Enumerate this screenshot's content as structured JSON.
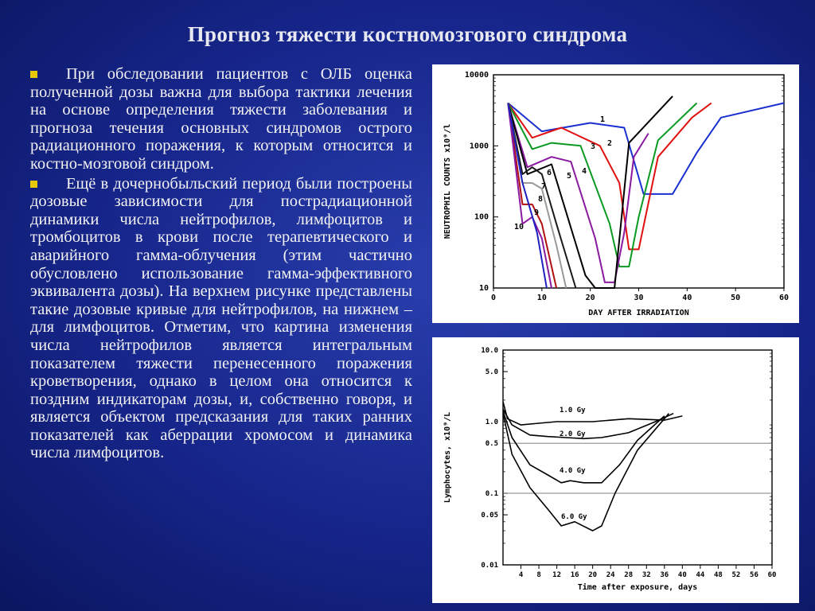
{
  "slide": {
    "title": "Прогноз тяжести костномозгового синдрома",
    "paragraphs": [
      "При обследовании пациентов с ОЛБ оценка полученной дозы важна для выбора тактики лечения на основе определения тяжести заболевания и прогноза течения основных синдромов острого радиационного поражения, к которым относится и костно-мозговой синдром.",
      "Ещё в дочернобыльский период были построены дозовые зависимости для пострадиационной динамики числа нейтрофилов, лимфоцитов и тромбоцитов в крови после терапевтического и аварийного гамма-облучения (этим частично обусловлено использование гамма-эффективного эквивалента дозы). На верхнем рисунке представлены такие дозовые кривые для нейтрофилов, на нижнем – для лимфоцитов. Отметим, что картина изменения числа нейтрофилов является интегральным показателем тяжести перенесенного поражения кроветворения, однако в целом она относится к поздним индикаторам дозы, и, собственно говоря, и является объектом предсказания для таких ранних показателей как аберрации хромосом и динамика числа лимфоцитов."
    ]
  },
  "colors": {
    "background": "#16258a",
    "bullet": "#e8c800",
    "text": "#f2f2f2"
  },
  "chart_data": [
    {
      "type": "line",
      "xlabel": "DAY AFTER IRRADIATION",
      "ylabel": "NEUTROPHIL COUNTS x10⁹/l",
      "xlim": [
        0,
        60
      ],
      "ylim": [
        10,
        10000
      ],
      "yscale": "log",
      "x_ticks": [
        "0",
        "10",
        "20",
        "30",
        "40",
        "50",
        "60"
      ],
      "y_ticks": [
        "10",
        "100",
        "1000",
        "10000"
      ],
      "series": [
        {
          "name": "1",
          "color": "#1a2fd0",
          "x": [
            3,
            10,
            20,
            27,
            31,
            37,
            42,
            47,
            60
          ],
          "y": [
            4000,
            1600,
            2100,
            1800,
            210,
            210,
            800,
            2500,
            4000
          ]
        },
        {
          "name": "2",
          "color": "#e01010",
          "x": [
            3,
            8,
            14,
            22,
            26,
            28,
            30,
            34,
            41,
            45
          ],
          "y": [
            4000,
            1300,
            1800,
            1000,
            300,
            35,
            35,
            700,
            2500,
            4000
          ]
        },
        {
          "name": "3",
          "color": "#0a9a22",
          "x": [
            3,
            8,
            12,
            18,
            24,
            26,
            28,
            30,
            34,
            42
          ],
          "y": [
            4000,
            900,
            1100,
            1000,
            80,
            20,
            20,
            100,
            1200,
            4000
          ]
        },
        {
          "name": "4",
          "color": "#8a1aa0",
          "x": [
            3,
            7,
            12,
            16,
            21,
            23,
            25,
            27,
            29,
            32
          ],
          "y": [
            4000,
            500,
            700,
            600,
            50,
            12,
            12,
            60,
            700,
            1500
          ]
        },
        {
          "name": "5",
          "color": "#000000",
          "x": [
            3,
            7,
            12,
            19,
            21,
            25,
            28,
            37
          ],
          "y": [
            4000,
            400,
            550,
            15,
            10,
            10,
            1100,
            5000
          ]
        },
        {
          "name": "6",
          "color": "#1a1a1a",
          "x": [
            3,
            6,
            8,
            10,
            13,
            17
          ],
          "y": [
            4000,
            400,
            500,
            400,
            80,
            10
          ]
        },
        {
          "name": "7",
          "color": "#999999",
          "x": [
            3,
            6,
            8,
            10,
            13,
            15
          ],
          "y": [
            4000,
            300,
            300,
            250,
            40,
            10
          ]
        },
        {
          "name": "8",
          "color": "#b01010",
          "x": [
            3,
            6,
            8,
            10,
            13
          ],
          "y": [
            4000,
            150,
            150,
            80,
            10
          ]
        },
        {
          "name": "9",
          "color": "#8a1aa0",
          "x": [
            3,
            6,
            8,
            10,
            12
          ],
          "y": [
            4000,
            80,
            100,
            50,
            10
          ]
        },
        {
          "name": "10",
          "color": "#2020c0",
          "x": [
            3,
            6,
            9,
            11
          ],
          "y": [
            4000,
            300,
            60,
            10
          ]
        }
      ]
    },
    {
      "type": "line",
      "xlabel": "Time after exposure, days",
      "ylabel": "Lymphocytes, x10⁹/L",
      "xlim": [
        0,
        60
      ],
      "ylim": [
        0.01,
        10.0
      ],
      "yscale": "log",
      "x_ticks": [
        "4",
        "8",
        "12",
        "16",
        "20",
        "24",
        "28",
        "32",
        "36",
        "40",
        "44",
        "48",
        "52",
        "56",
        "60"
      ],
      "y_ticks": [
        "10.0",
        "5.0",
        "1.0",
        "0.5",
        "0.1",
        "0.05",
        "0.01"
      ],
      "reference_lines": [
        0.5,
        0.1
      ],
      "series": [
        {
          "name": "1.0 Gy",
          "color": "#000000",
          "x": [
            0,
            1,
            4,
            8,
            12,
            20,
            28,
            36,
            40
          ],
          "y": [
            1.9,
            1.1,
            0.9,
            0.95,
            1.0,
            1.0,
            1.1,
            1.05,
            1.2
          ]
        },
        {
          "name": "2.0 Gy",
          "color": "#000000",
          "x": [
            0,
            2,
            6,
            10,
            14,
            18,
            22,
            28,
            34,
            38
          ],
          "y": [
            1.5,
            0.9,
            0.65,
            0.62,
            0.6,
            0.58,
            0.6,
            0.7,
            1.0,
            1.3
          ]
        },
        {
          "name": "4.0 Gy",
          "color": "#000000",
          "x": [
            0,
            2,
            6,
            10,
            13,
            15,
            18,
            22,
            26,
            30,
            36
          ],
          "y": [
            1.4,
            0.6,
            0.25,
            0.18,
            0.14,
            0.15,
            0.14,
            0.14,
            0.25,
            0.55,
            1.2
          ]
        },
        {
          "name": "6.0 Gy",
          "color": "#000000",
          "x": [
            0,
            2,
            6,
            10,
            13,
            16,
            20,
            22,
            25,
            30,
            37
          ],
          "y": [
            1.3,
            0.35,
            0.12,
            0.06,
            0.035,
            0.04,
            0.03,
            0.035,
            0.1,
            0.4,
            1.3
          ]
        }
      ]
    }
  ]
}
